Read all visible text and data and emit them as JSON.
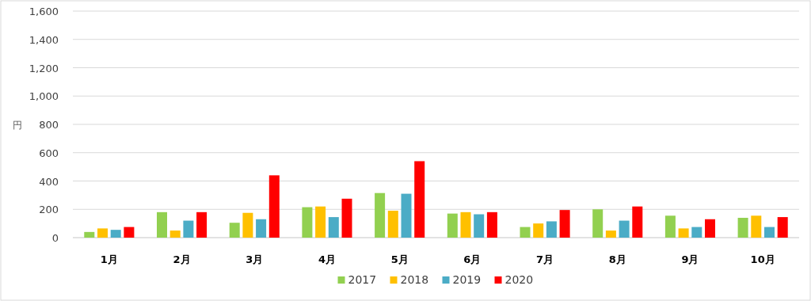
{
  "chart_data": {
    "type": "bar",
    "ylabel": "円",
    "categories": [
      "1月",
      "2月",
      "3月",
      "4月",
      "5月",
      "6月",
      "7月",
      "8月",
      "9月",
      "10月"
    ],
    "series": [
      {
        "name": "2017",
        "color": "#92d050",
        "values": [
          40,
          180,
          105,
          215,
          315,
          170,
          75,
          200,
          155,
          140
        ]
      },
      {
        "name": "2018",
        "color": "#ffc000",
        "values": [
          65,
          50,
          175,
          220,
          190,
          180,
          100,
          50,
          65,
          155
        ]
      },
      {
        "name": "2019",
        "color": "#4bacc6",
        "values": [
          55,
          120,
          130,
          145,
          310,
          165,
          115,
          120,
          75,
          75
        ]
      },
      {
        "name": "2020",
        "color": "#ff0000",
        "values": [
          75,
          180,
          440,
          275,
          540,
          180,
          195,
          220,
          130,
          145
        ]
      }
    ],
    "ylim": [
      0,
      1600
    ],
    "yticks": [
      {
        "value": 0,
        "label": "0"
      },
      {
        "value": 200,
        "label": "200"
      },
      {
        "value": 400,
        "label": "400"
      },
      {
        "value": 600,
        "label": "600"
      },
      {
        "value": 800,
        "label": "800"
      },
      {
        "value": 1000,
        "label": "1,000"
      },
      {
        "value": 1200,
        "label": "1,200"
      },
      {
        "value": 1400,
        "label": "1,400"
      },
      {
        "value": 1600,
        "label": "1,600"
      }
    ],
    "grid": "y",
    "legend": "bottom"
  }
}
